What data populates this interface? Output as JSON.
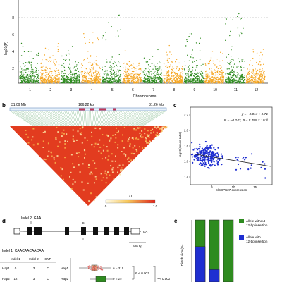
{
  "panel_a": {
    "ylabel": "−log10(P)",
    "yticks": [
      "2",
      "4",
      "6",
      "8"
    ],
    "xlabel": "Chromosome",
    "chromosomes": [
      "1",
      "2",
      "3",
      "4",
      "5",
      "6",
      "7",
      "8",
      "9",
      "10",
      "11",
      "12"
    ],
    "colors": {
      "odd": "#2e8b1f",
      "even": "#f5a623"
    }
  },
  "panel_b": {
    "label": "b",
    "left_coord": "31.09 Mb",
    "span": "166.22 kb",
    "right_coord": "31.26 Mb",
    "legend_title": "D",
    "legend_min": "0",
    "legend_max": "1.0"
  },
  "panel_c": {
    "label": "c",
    "ylabel": "log10(solute ratio)",
    "xlabel": "SlCDPK27 expression",
    "equation": "y = −0.01x + 1.71",
    "stats": "R = −0.243, P = 5.785 × 10⁻⁸",
    "yticks": [
      "1.4",
      "1.6",
      "1.8",
      "2.0",
      "2.2"
    ],
    "xticks": [
      "5",
      "10",
      "15"
    ],
    "point_color": "#1f2fd1"
  },
  "panel_d": {
    "label": "d",
    "indel2": "Indel 2: GAA",
    "atg": "ATG",
    "tga": "TGA",
    "scale": "500 bp",
    "snp_top": "C",
    "snp_bottom": "T",
    "indel1": "Indel 1: CAACAACAACAA",
    "table_headers": [
      "Indel 1",
      "Indel 2",
      "SNP"
    ],
    "rows": [
      {
        "hap": "Hap1",
        "i1": "0",
        "i2": "3",
        "snp": "C"
      },
      {
        "hap": "Hap2",
        "i1": "12",
        "i2": "3",
        "snp": "C"
      }
    ],
    "box_rows": [
      {
        "hap": "Hap1",
        "n": "n = 319"
      },
      {
        "hap": "Hap2",
        "n": "n = 14"
      }
    ],
    "p_values": [
      "P < 0.001",
      "P < 0.001"
    ]
  },
  "panel_e": {
    "label": "e",
    "ylabel": "Distribution (%)",
    "legend": [
      {
        "label": "Allele without 12-bp insertion",
        "color": "#2e8b1f"
      },
      {
        "label": "Allele with 12-bp insertion",
        "color": "#1f2fd1"
      }
    ],
    "bars": [
      0.57,
      0.2,
      0.0
    ]
  }
}
